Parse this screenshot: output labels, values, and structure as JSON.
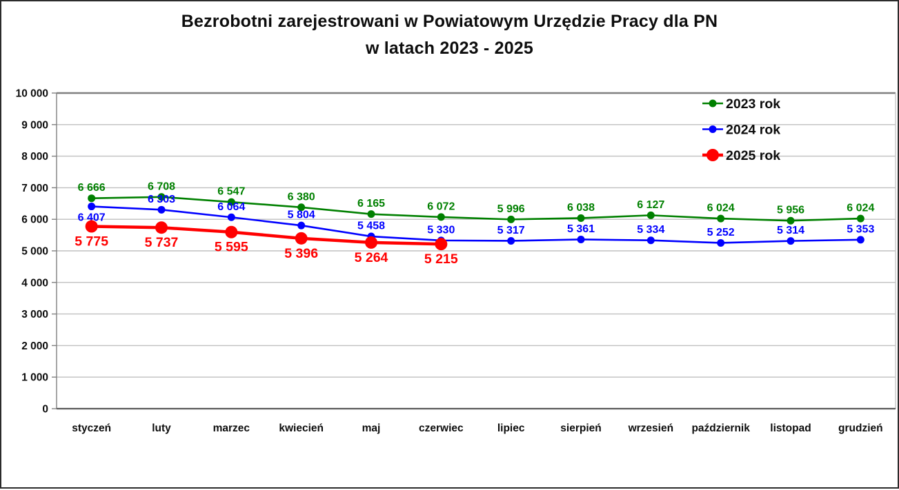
{
  "title": {
    "line1": "Bezrobotni zarejestrowani w Powiatowym Urzędzie Pracy dla PN",
    "line2": "w latach 2023 - 2025"
  },
  "chart_data": {
    "type": "line",
    "title": "Bezrobotni zarejestrowani w Powiatowym Urzędzie Pracy dla PN w latach 2023 - 2025",
    "categories": [
      "styczeń",
      "luty",
      "marzec",
      "kwiecień",
      "maj",
      "czerwiec",
      "lipiec",
      "sierpień",
      "wrzesień",
      "październik",
      "listopad",
      "grudzień"
    ],
    "series": [
      {
        "name": "2023 rok",
        "color": "#008000",
        "values": [
          6666,
          6708,
          6547,
          6380,
          6165,
          6072,
          5996,
          6038,
          6127,
          6024,
          5956,
          6024
        ],
        "marker_radius": 5.5,
        "line_width": 2.6,
        "label_position": "above",
        "label_position_overrides": {}
      },
      {
        "name": "2024 rok",
        "color": "#0000ff",
        "values": [
          6407,
          6303,
          6064,
          5804,
          5458,
          5330,
          5317,
          5361,
          5334,
          5252,
          5314,
          5353
        ],
        "marker_radius": 5.5,
        "line_width": 2.6,
        "label_position": "above",
        "label_position_overrides": {
          "0": "below"
        }
      },
      {
        "name": "2025 rok",
        "color": "#ff0000",
        "values": [
          5775,
          5737,
          5595,
          5396,
          5264,
          5215
        ],
        "marker_radius": 9,
        "line_width": 4.5,
        "label_position": "below",
        "label_position_overrides": {}
      }
    ],
    "xlabel": "",
    "ylabel": "",
    "ylim": [
      0,
      10000
    ],
    "ytick_step": 1000,
    "ytick_labels": [
      "0",
      "1 000",
      "2 000",
      "3 000",
      "4 000",
      "5 000",
      "6 000",
      "7 000",
      "8 000",
      "9 000",
      "10 000"
    ],
    "grid": true,
    "legend_position": "top-right"
  },
  "colors": {
    "series_2023": "#008000",
    "series_2024": "#0000ff",
    "series_2025": "#ff0000",
    "gridline": "#bfbfbf",
    "axis": "#595959",
    "plot_border": "#7f7f7f",
    "text": "#0d0d0d"
  }
}
